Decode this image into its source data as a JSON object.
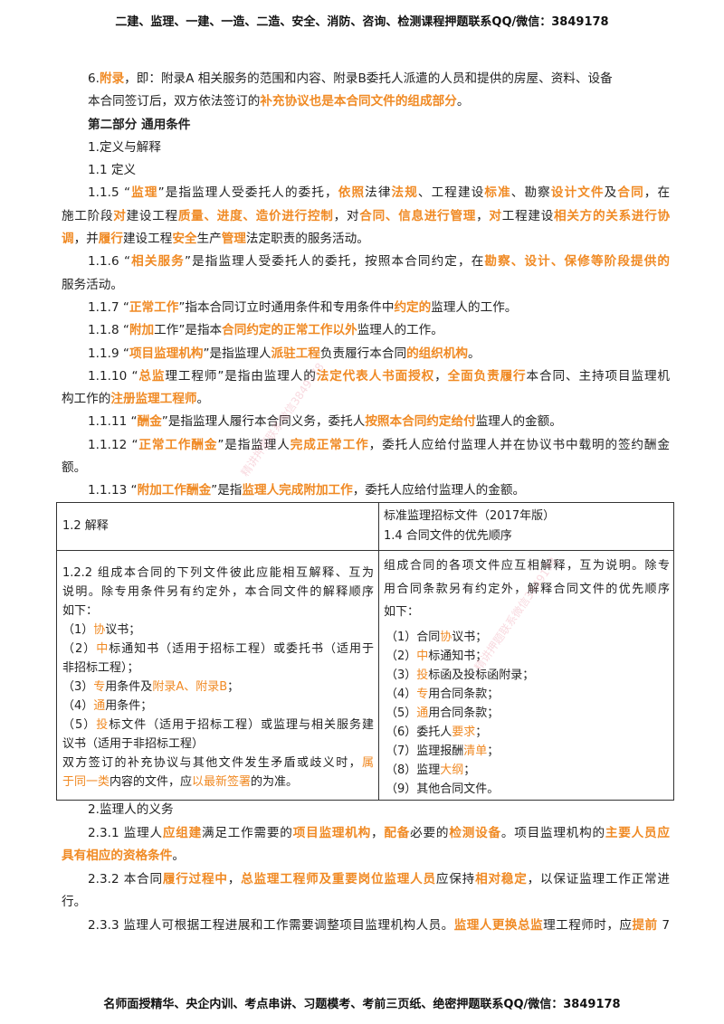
{
  "header": "二建、监理、一建、一造、二造、安全、消防、咨询、检测课程押题联系QQ/微信：3849178",
  "footer": "名师面授精华、央企内训、考点串讲、习题模考、考前三页纸、绝密押题联系QQ/微信：3849178",
  "watermark": "精讲押题联系微信3849178",
  "colors": {
    "highlight": "#f08a24",
    "text": "#222222"
  },
  "body": {
    "lines": [
      [
        {
          "t": "6."
        },
        {
          "t": "附录",
          "o": true
        },
        {
          "t": "，即：附录A 相关服务的范围和内容、附录B委托人派遣的人员和提供的房屋、资料、设备"
        }
      ],
      [
        {
          "t": "本合同签订后，双方依法签订的"
        },
        {
          "t": "补充协议也是本合同文件的组成部分",
          "o": true
        },
        {
          "t": "。"
        }
      ],
      [
        {
          "t": "第二部分  通用条件"
        }
      ],
      [
        {
          "t": "1.定义与解释"
        }
      ],
      [
        {
          "t": "1.1 定义"
        }
      ],
      [
        {
          "t": "1.1.5 “"
        },
        {
          "t": "监理",
          "o": true
        },
        {
          "t": "”是指监理人受委托人的委托，"
        },
        {
          "t": "依照",
          "o": true
        },
        {
          "t": "法律"
        },
        {
          "t": "法规",
          "o": true
        },
        {
          "t": "、工程建设"
        },
        {
          "t": "标准",
          "o": true
        },
        {
          "t": "、勘察"
        },
        {
          "t": "设计文件",
          "o": true
        },
        {
          "t": "及"
        },
        {
          "t": "合同",
          "o": true
        },
        {
          "t": "，在"
        }
      ],
      [
        {
          "t": "施工阶段"
        },
        {
          "t": "对",
          "o": true
        },
        {
          "t": "建设工程"
        },
        {
          "t": "质量、进度、造价进行控制",
          "o": true
        },
        {
          "t": "，对"
        },
        {
          "t": "合同、信息进行管理",
          "o": true
        },
        {
          "t": "，"
        },
        {
          "t": "对",
          "o": true
        },
        {
          "t": "工程建设"
        },
        {
          "t": "相关方的关系进行协",
          "o": true
        }
      ],
      [
        {
          "t": "调",
          "o": true
        },
        {
          "t": "，并"
        },
        {
          "t": "履行",
          "o": true
        },
        {
          "t": "建设工程"
        },
        {
          "t": "安全",
          "o": true
        },
        {
          "t": "生产"
        },
        {
          "t": "管理",
          "o": true
        },
        {
          "t": "法定职责的服务活动。"
        }
      ],
      [
        {
          "t": "1.1.6 “"
        },
        {
          "t": "相关服务",
          "o": true
        },
        {
          "t": "”是指监理人受委托人的委托，按照本合同约定，在"
        },
        {
          "t": "勘察、设计、保修等阶段提供的",
          "o": true
        }
      ],
      [
        {
          "t": "服务活动。"
        }
      ],
      [
        {
          "t": "1.1.7 “"
        },
        {
          "t": "正常工作",
          "o": true
        },
        {
          "t": "”指本合同订立时通用条件和专用条件中"
        },
        {
          "t": "约定的",
          "o": true
        },
        {
          "t": "监理人的工作。"
        }
      ],
      [
        {
          "t": "1.1.8 “"
        },
        {
          "t": "附加",
          "o": true
        },
        {
          "t": "工作”是指本"
        },
        {
          "t": "合同约定的正常工作以外",
          "o": true
        },
        {
          "t": "监理人的工作。"
        }
      ],
      [
        {
          "t": "1.1.9 “"
        },
        {
          "t": "项目监理机构",
          "o": true
        },
        {
          "t": "”是指监理人"
        },
        {
          "t": "派驻工程",
          "o": true
        },
        {
          "t": "负责履行本合同"
        },
        {
          "t": "的组织机构",
          "o": true
        },
        {
          "t": "。"
        }
      ],
      [
        {
          "t": "1.1.10 “"
        },
        {
          "t": "总监",
          "o": true
        },
        {
          "t": "理工程师”是指由监理人的"
        },
        {
          "t": "法定代表人书面授权",
          "o": true
        },
        {
          "t": "，"
        },
        {
          "t": "全面负责履行",
          "o": true
        },
        {
          "t": "本合同、主持项目监理机"
        }
      ],
      [
        {
          "t": "构工作的"
        },
        {
          "t": "注册监理工程师",
          "o": true
        },
        {
          "t": "。"
        }
      ],
      [
        {
          "t": "1.1.11 “"
        },
        {
          "t": "酬金",
          "o": true
        },
        {
          "t": "”是指监理人履行本合同义务，委托人"
        },
        {
          "t": "按照本合同约定给付",
          "o": true
        },
        {
          "t": "监理人的金额。"
        }
      ],
      [
        {
          "t": "1.1.12 “"
        },
        {
          "t": "正常工作酬金",
          "o": true
        },
        {
          "t": "”是指监理人"
        },
        {
          "t": "完成正常工作",
          "o": true
        },
        {
          "t": "，委托人应给付监理人并在协议书中载明的签约酬金"
        }
      ],
      [
        {
          "t": "额。"
        }
      ],
      [
        {
          "t": "1.1.13 “"
        },
        {
          "t": "附加工作酬金",
          "o": true
        },
        {
          "t": "”是指"
        },
        {
          "t": "监理人完成附加工作",
          "o": true
        },
        {
          "t": "，委托人应给付监理人的金额。"
        }
      ]
    ]
  },
  "table": {
    "head_left": [
      [
        {
          "t": "1.2 解释"
        }
      ]
    ],
    "head_right": [
      [
        {
          "t": "标准监理招标文件（2017年版）"
        }
      ],
      [
        {
          "t": "1.4 合同文件的优先顺序"
        }
      ]
    ],
    "left": [
      [
        {
          "t": "1.2.2 组成本合同的下列文件彼此应能相互解释、互为"
        }
      ],
      [
        {
          "t": "说明。除专用条件另有约定外，本合同文件的解释顺序"
        }
      ],
      [
        {
          "t": "如下："
        }
      ],
      [
        {
          "t": "（1）"
        },
        {
          "t": "协",
          "o": true
        },
        {
          "t": "议书；"
        }
      ],
      [
        {
          "t": "（2）"
        },
        {
          "t": "中",
          "o": true
        },
        {
          "t": "标通知书（适用于招标工程）或委托书（适用于"
        }
      ],
      [
        {
          "t": "非招标工程）；"
        }
      ],
      [
        {
          "t": "（3）"
        },
        {
          "t": "专",
          "o": true
        },
        {
          "t": "用条件及"
        },
        {
          "t": "附录A、附录B",
          "o": true
        },
        {
          "t": "；"
        }
      ],
      [
        {
          "t": "（4）"
        },
        {
          "t": "通",
          "o": true
        },
        {
          "t": "用条件；"
        }
      ],
      [
        {
          "t": "（5）"
        },
        {
          "t": "投",
          "o": true
        },
        {
          "t": "标文件（适用于招标工程）或监理与相关服务建"
        }
      ],
      [
        {
          "t": "议书（适用于非招标工程）"
        }
      ],
      [
        {
          "t": "双方签订的补充协议与其他文件发生矛盾或歧义时，"
        },
        {
          "t": "属",
          "o": true
        }
      ],
      [
        {
          "t": "于同一类",
          "o": true
        },
        {
          "t": "内容的文件，应"
        },
        {
          "t": "以最新签署",
          "o": true
        },
        {
          "t": "的为准。"
        }
      ]
    ],
    "right": [
      [
        {
          "t": "组成合同的各项文件应互相解释，互为说明。除专"
        }
      ],
      [
        {
          "t": "用合同条款另有约定外，解释合同文件的优先顺序"
        }
      ],
      [
        {
          "t": "如下："
        }
      ],
      [
        {
          "t": "（1）合同"
        },
        {
          "t": "协",
          "o": true
        },
        {
          "t": "议书；"
        }
      ],
      [
        {
          "t": "（2）"
        },
        {
          "t": "中",
          "o": true
        },
        {
          "t": "标通知书；"
        }
      ],
      [
        {
          "t": "（3）"
        },
        {
          "t": "投",
          "o": true
        },
        {
          "t": "标函及投标函附录；"
        }
      ],
      [
        {
          "t": "（4）"
        },
        {
          "t": "专",
          "o": true
        },
        {
          "t": "用合同条款；"
        }
      ],
      [
        {
          "t": "（5）"
        },
        {
          "t": "通",
          "o": true
        },
        {
          "t": "用合同条款；"
        }
      ],
      [
        {
          "t": "（6）委托人"
        },
        {
          "t": "要求",
          "o": true
        },
        {
          "t": "；"
        }
      ],
      [
        {
          "t": "（7）监理报酬"
        },
        {
          "t": "清单",
          "o": true
        },
        {
          "t": "；"
        }
      ],
      [
        {
          "t": "（8）监理"
        },
        {
          "t": "大纲",
          "o": true
        },
        {
          "t": "；"
        }
      ],
      [
        {
          "t": "（9）其他合同文件。"
        }
      ]
    ]
  },
  "after": {
    "lines": [
      [
        {
          "t": "2.监理人的义务"
        }
      ],
      [
        {
          "t": "2.3.1 监理人"
        },
        {
          "t": "应组建",
          "o": true
        },
        {
          "t": "满足工作需要的"
        },
        {
          "t": "项目监理机构",
          "o": true
        },
        {
          "t": "，"
        },
        {
          "t": "配备",
          "o": true
        },
        {
          "t": "必要的"
        },
        {
          "t": "检测设备",
          "o": true
        },
        {
          "t": "。项目监理机构的"
        },
        {
          "t": "主要人员应",
          "o": true
        }
      ],
      [
        {
          "t": "具有相应的资格条件",
          "o": true
        },
        {
          "t": "。"
        }
      ],
      [
        {
          "t": "2.3.2 本合同"
        },
        {
          "t": "履行过程中",
          "o": true
        },
        {
          "t": "，"
        },
        {
          "t": "总监理工程师及重要岗位监理人员",
          "o": true
        },
        {
          "t": "应保持"
        },
        {
          "t": "相对稳定",
          "o": true
        },
        {
          "t": "，以保证监理工作正常进"
        }
      ],
      [
        {
          "t": "行。"
        }
      ],
      [
        {
          "t": "2.3.3 监理人可根据工程进展和工作需要调整项目监理机构人员。"
        },
        {
          "t": "监理人更换总监",
          "o": true
        },
        {
          "t": "理工程师时，应"
        },
        {
          "t": "提前",
          "o": true
        },
        {
          "t": " 7"
        }
      ]
    ]
  }
}
